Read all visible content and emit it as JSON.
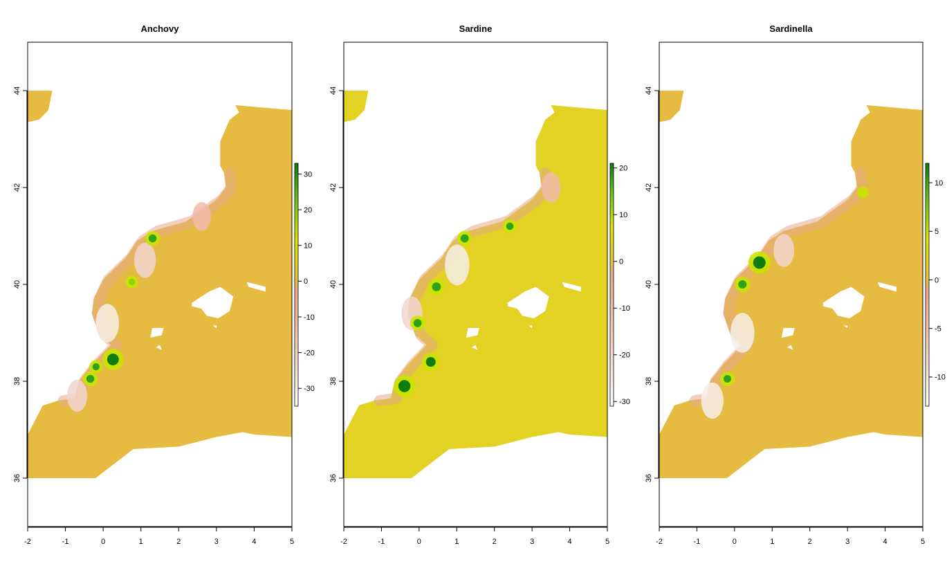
{
  "chart_data": [
    {
      "type": "heatmap",
      "title": "Anchovy",
      "xlabel": "",
      "ylabel": "",
      "xlim": [
        -2,
        5
      ],
      "ylim": [
        35,
        45
      ],
      "x_ticks": [
        "-2",
        "-1",
        "0",
        "1",
        "2",
        "3",
        "4",
        "5"
      ],
      "y_ticks": [
        "36",
        "38",
        "40",
        "42",
        "44"
      ],
      "legend": {
        "ticks": [
          "30",
          "20",
          "10",
          "0",
          "-10",
          "-20",
          "-30"
        ],
        "range": [
          -35,
          33
        ]
      },
      "base_color": "#e6bb42",
      "hotspots_green": [
        {
          "lon": 0.15,
          "lat": 38.45,
          "value": 30
        },
        {
          "lon": -0.45,
          "lat": 38.05,
          "value": 15
        },
        {
          "lon": -0.3,
          "lat": 38.3,
          "value": 12
        },
        {
          "lon": 1.2,
          "lat": 40.95,
          "value": 15
        },
        {
          "lon": 0.65,
          "lat": 40.05,
          "value": 10
        }
      ],
      "hotspots_pink": [
        {
          "lon": 0.0,
          "lat": 39.2,
          "value": -30
        },
        {
          "lon": 1.0,
          "lat": 40.5,
          "value": -25
        },
        {
          "lon": 2.5,
          "lat": 41.4,
          "value": -15
        },
        {
          "lon": -0.8,
          "lat": 37.7,
          "value": -20
        }
      ]
    },
    {
      "type": "heatmap",
      "title": "Sardine",
      "xlabel": "",
      "ylabel": "",
      "xlim": [
        -2,
        5
      ],
      "ylim": [
        35,
        45
      ],
      "x_ticks": [
        "-2",
        "-1",
        "0",
        "1",
        "2",
        "3",
        "4",
        "5"
      ],
      "y_ticks": [
        "36",
        "38",
        "40",
        "42",
        "44"
      ],
      "legend": {
        "ticks": [
          "20",
          "10",
          "0",
          "-10",
          "-20",
          "-30"
        ],
        "range": [
          -31,
          21
        ]
      },
      "base_color": "#e3d123",
      "hotspots_green": [
        {
          "lon": -0.5,
          "lat": 37.9,
          "value": 20
        },
        {
          "lon": 0.2,
          "lat": 38.4,
          "value": 14
        },
        {
          "lon": -0.15,
          "lat": 39.2,
          "value": 10
        },
        {
          "lon": 0.35,
          "lat": 39.95,
          "value": 12
        },
        {
          "lon": 1.1,
          "lat": 40.95,
          "value": 10
        },
        {
          "lon": 2.3,
          "lat": 41.2,
          "value": 8
        }
      ],
      "hotspots_pink": [
        {
          "lon": 0.9,
          "lat": 40.4,
          "value": -30
        },
        {
          "lon": -0.3,
          "lat": 39.4,
          "value": -20
        },
        {
          "lon": 3.4,
          "lat": 42.0,
          "value": -15
        }
      ]
    },
    {
      "type": "heatmap",
      "title": "Sardinella",
      "xlabel": "",
      "ylabel": "",
      "xlim": [
        -2,
        5
      ],
      "ylim": [
        35,
        45
      ],
      "x_ticks": [
        "-2",
        "-1",
        "0",
        "1",
        "2",
        "3",
        "4",
        "5"
      ],
      "y_ticks": [
        "36",
        "38",
        "40",
        "42",
        "44"
      ],
      "legend": {
        "ticks": [
          "10",
          "5",
          "0",
          "-5",
          "-10"
        ],
        "range": [
          -13,
          12
        ]
      },
      "base_color": "#e6bb42",
      "hotspots_green": [
        {
          "lon": 0.55,
          "lat": 40.45,
          "value": 12
        },
        {
          "lon": 0.1,
          "lat": 40.0,
          "value": 6
        },
        {
          "lon": -0.3,
          "lat": 38.05,
          "value": 5
        },
        {
          "lon": 3.3,
          "lat": 41.9,
          "value": 3
        }
      ],
      "hotspots_pink": [
        {
          "lon": 0.1,
          "lat": 39.0,
          "value": -12
        },
        {
          "lon": -0.7,
          "lat": 37.6,
          "value": -10
        },
        {
          "lon": 1.2,
          "lat": 40.7,
          "value": -8
        }
      ]
    }
  ]
}
